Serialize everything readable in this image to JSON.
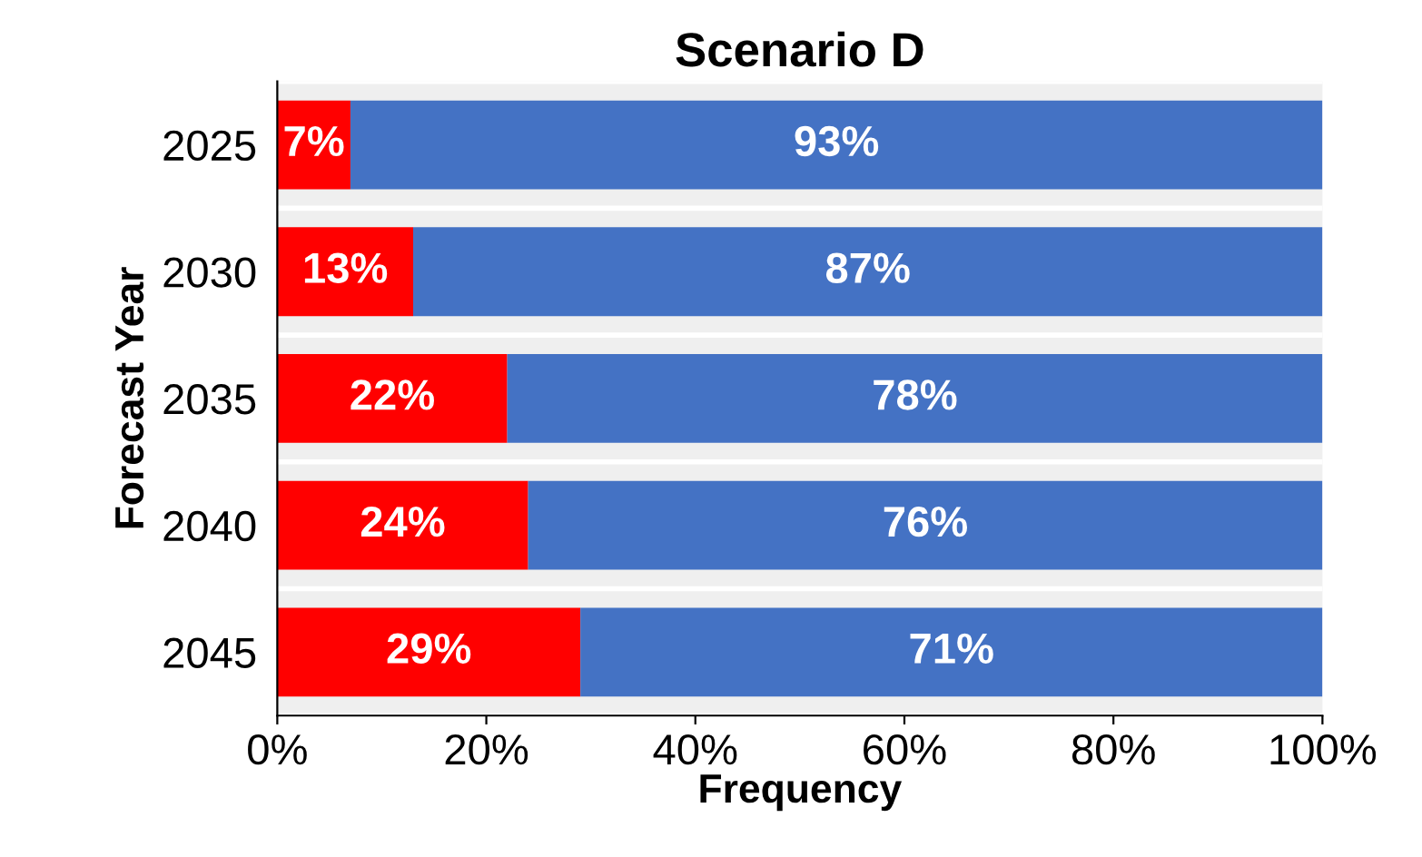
{
  "chart_data": {
    "type": "bar",
    "orientation": "horizontal",
    "stacked": true,
    "title": "Scenario D",
    "xlabel": "Frequency",
    "ylabel": "Forecast Year",
    "categories": [
      "2025",
      "2030",
      "2035",
      "2040",
      "2045"
    ],
    "series": [
      {
        "color": "#ff0000",
        "values": [
          7,
          13,
          22,
          24,
          29
        ],
        "value_labels": [
          "7%",
          "13%",
          "22%",
          "24%",
          "29%"
        ]
      },
      {
        "color": "#4472c4",
        "values": [
          93,
          87,
          78,
          76,
          71
        ],
        "value_labels": [
          "93%",
          "87%",
          "78%",
          "76%",
          "71%"
        ]
      }
    ],
    "xlim": [
      0,
      100
    ],
    "xticks": [
      {
        "value": 0,
        "label": "0%"
      },
      {
        "value": 20,
        "label": "20%"
      },
      {
        "value": 40,
        "label": "40%"
      },
      {
        "value": 60,
        "label": "60%"
      },
      {
        "value": 80,
        "label": "80%"
      },
      {
        "value": 100,
        "label": "100%"
      }
    ],
    "grid": false,
    "legend": false
  }
}
